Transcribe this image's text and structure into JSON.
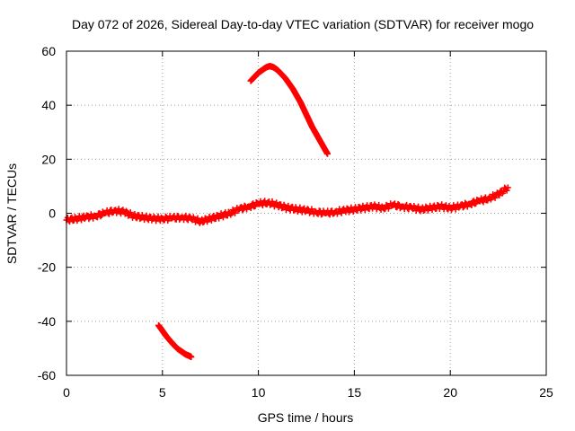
{
  "chart_data": {
    "type": "scatter",
    "title": "Day 072 of 2026, Sidereal Day-to-day VTEC variation (SDTVAR) for receiver mogo",
    "xlabel": "GPS time / hours",
    "ylabel": "SDTVAR / TECUs",
    "xlim": [
      0,
      25
    ],
    "ylim": [
      -60,
      60
    ],
    "x_ticks": [
      0,
      5,
      10,
      15,
      20,
      25
    ],
    "y_ticks": [
      -60,
      -40,
      -20,
      0,
      20,
      40,
      60
    ],
    "grid": true,
    "marker": "plus",
    "color": "#ff0000",
    "series": [
      {
        "name": "main",
        "x": [
          0,
          0.5,
          1.0,
          1.5,
          2.0,
          2.5,
          3.0,
          3.5,
          4.0,
          4.5,
          5.0,
          5.5,
          6.0,
          6.5,
          7.0,
          7.5,
          8.0,
          8.5,
          9.0,
          9.5,
          10.0,
          10.5,
          11.0,
          11.5,
          12.0,
          12.5,
          13.0,
          13.5,
          14.0,
          14.5,
          15.0,
          15.5,
          16.0,
          16.5,
          17.0,
          17.5,
          18.0,
          18.5,
          19.0,
          19.5,
          20.0,
          20.5,
          21.0,
          21.5,
          22.0,
          22.5,
          23.0
        ],
        "y": [
          -2.5,
          -2.0,
          -1.5,
          -1.0,
          0.0,
          1.0,
          0.5,
          -1.0,
          -1.5,
          -2.0,
          -2.0,
          -1.8,
          -1.5,
          -2.0,
          -3.0,
          -2.0,
          -1.0,
          0.0,
          1.5,
          2.5,
          3.5,
          4.0,
          3.0,
          2.0,
          1.5,
          1.0,
          0.5,
          0.0,
          0.5,
          1.0,
          1.5,
          2.0,
          2.5,
          2.0,
          3.0,
          2.5,
          2.0,
          1.5,
          2.0,
          2.5,
          2.0,
          2.5,
          3.5,
          4.5,
          5.5,
          7.0,
          9.5
        ]
      },
      {
        "name": "arc-high",
        "x": [
          9.6,
          9.8,
          10.0,
          10.2,
          10.4,
          10.6,
          10.8,
          11.0,
          11.2,
          11.4,
          11.6,
          11.8,
          12.0,
          12.2,
          12.4,
          12.6,
          12.8,
          13.0,
          13.2,
          13.4,
          13.6
        ],
        "y": [
          49,
          50.5,
          52,
          53,
          54,
          54.5,
          54,
          53,
          51.5,
          50,
          48,
          46,
          43.5,
          41,
          38,
          35,
          32,
          29.5,
          27,
          24.5,
          22
        ]
      },
      {
        "name": "arc-low",
        "x": [
          4.8,
          5.0,
          5.2,
          5.4,
          5.6,
          5.8,
          6.0,
          6.2,
          6.4,
          6.5
        ],
        "y": [
          -41.5,
          -43.5,
          -45.5,
          -47.2,
          -48.8,
          -50.2,
          -51.2,
          -52.2,
          -52.8,
          -53.2
        ]
      }
    ]
  }
}
